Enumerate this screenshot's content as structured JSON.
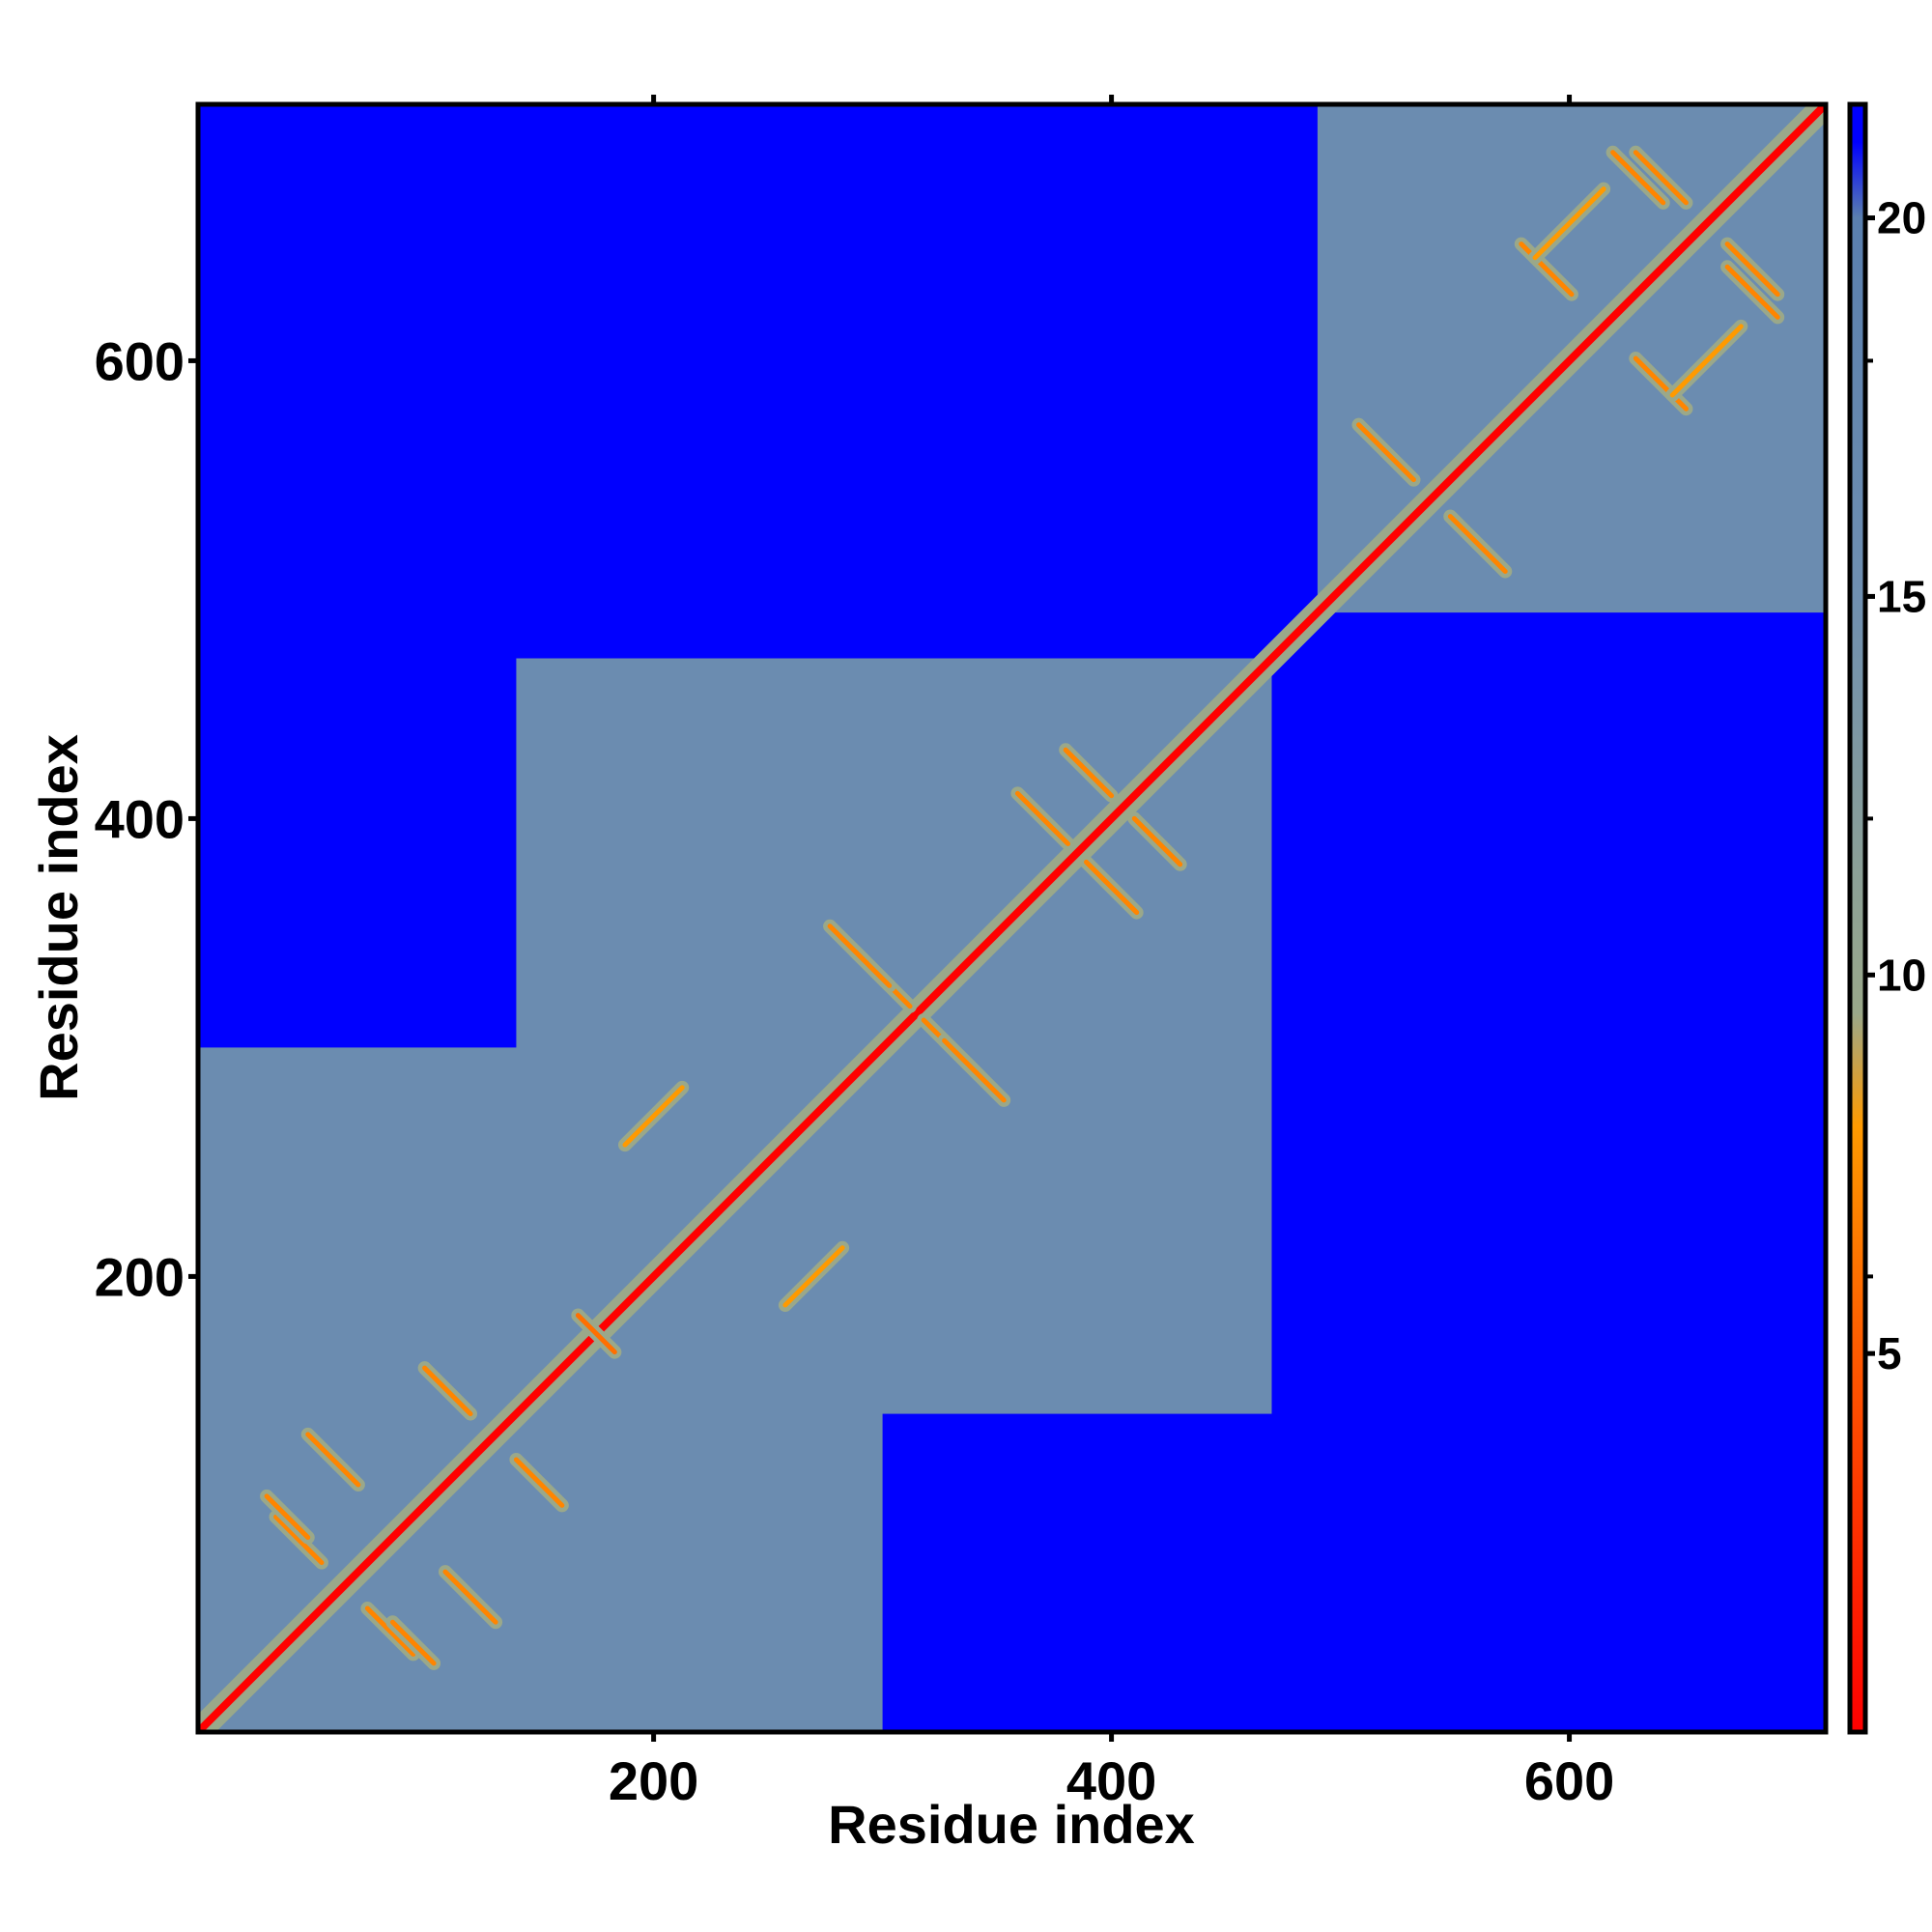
{
  "chart_data": {
    "type": "heatmap",
    "title": "",
    "xlabel": "Residue index",
    "ylabel": "Residue index",
    "xlim": [
      1,
      712
    ],
    "ylim": [
      1,
      712
    ],
    "x_ticks": [
      200,
      400,
      600
    ],
    "y_ticks": [
      200,
      400,
      600
    ],
    "x_top_ticks": [
      200,
      400,
      600
    ],
    "colorbar": {
      "range": [
        0,
        21.5
      ],
      "ticks": [
        5,
        10,
        15,
        20
      ],
      "stops": [
        {
          "value": 0,
          "color": "#ff0000"
        },
        {
          "value": 5,
          "color": "#ff5a00"
        },
        {
          "value": 8,
          "color": "#ff9a00"
        },
        {
          "value": 9.5,
          "color": "#9aa88a"
        },
        {
          "value": 15,
          "color": "#6f8fb0"
        },
        {
          "value": 20,
          "color": "#5a7fae"
        },
        {
          "value": 21,
          "color": "#0000ff"
        }
      ]
    },
    "background_value": 21,
    "domains": [
      {
        "start": 1,
        "end": 300,
        "value": 16
      },
      {
        "start": 140,
        "end": 470,
        "value": 16
      },
      {
        "start": 490,
        "end": 712,
        "value": 16
      }
    ],
    "contact_lines": [
      {
        "type": "anti",
        "center": [
          45,
          85
        ],
        "length": 20,
        "value": 7
      },
      {
        "type": "anti",
        "center": [
          60,
          120
        ],
        "length": 22,
        "value": 7
      },
      {
        "type": "anti",
        "center": [
          95,
          40
        ],
        "length": 18,
        "value": 7
      },
      {
        "type": "anti",
        "center": [
          110,
          150
        ],
        "length": 20,
        "value": 7
      },
      {
        "type": "anti",
        "center": [
          175,
          175
        ],
        "length": 16,
        "value": 6
      },
      {
        "type": "parallel",
        "center": [
          270,
          200
        ],
        "length": 25,
        "value": 8
      },
      {
        "type": "anti",
        "center": [
          300,
          330
        ],
        "length": 24,
        "value": 7
      },
      {
        "type": "anti",
        "center": [
          340,
          290
        ],
        "length": 26,
        "value": 7
      },
      {
        "type": "anti",
        "center": [
          370,
          400
        ],
        "length": 22,
        "value": 7
      },
      {
        "type": "anti",
        "center": [
          420,
          390
        ],
        "length": 20,
        "value": 7
      },
      {
        "type": "anti",
        "center": [
          520,
          560
        ],
        "length": 24,
        "value": 7
      },
      {
        "type": "anti",
        "center": [
          560,
          520
        ],
        "length": 24,
        "value": 7
      },
      {
        "type": "anti",
        "center": [
          590,
          640
        ],
        "length": 22,
        "value": 7
      },
      {
        "type": "anti",
        "center": [
          640,
          680
        ],
        "length": 22,
        "value": 7
      },
      {
        "type": "anti",
        "center": [
          680,
          630
        ],
        "length": 22,
        "value": 7
      },
      {
        "type": "parallel",
        "center": [
          660,
          600
        ],
        "length": 30,
        "value": 8
      }
    ],
    "diagonal_value": 0
  }
}
